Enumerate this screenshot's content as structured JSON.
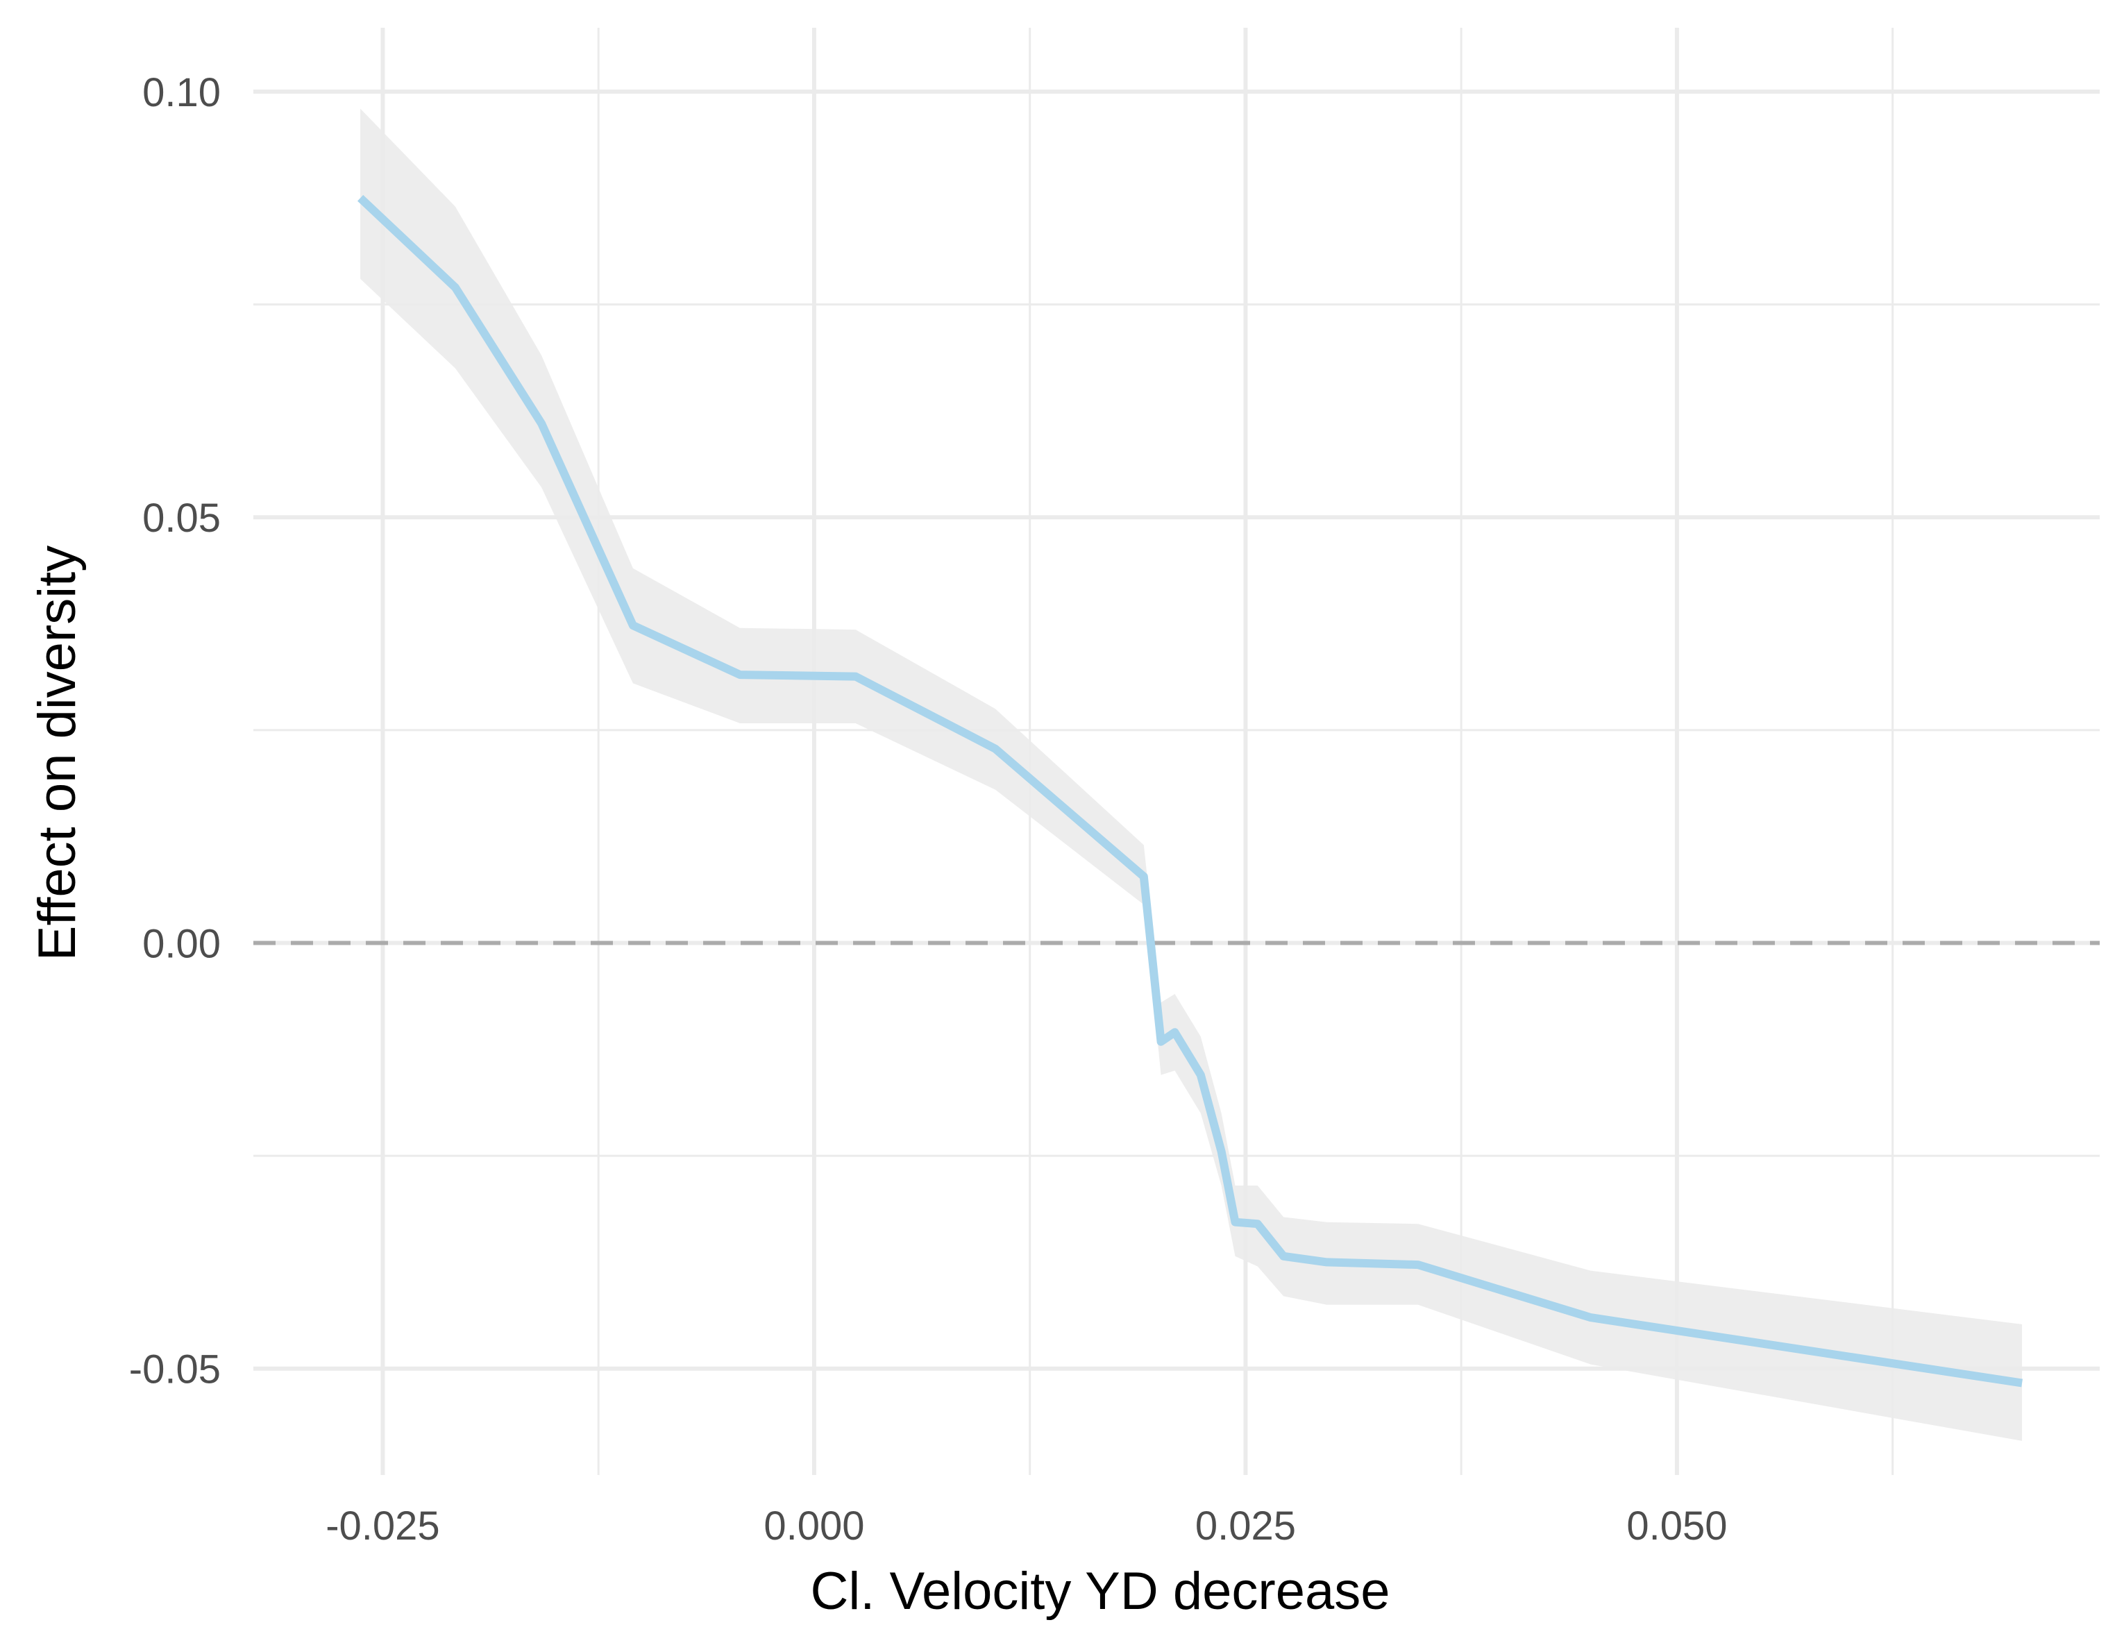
{
  "chart_data": {
    "type": "line",
    "title": "",
    "xlabel": "Cl. Velocity YD decrease",
    "ylabel": "Effect on diversity",
    "xlim": [
      -0.0325,
      0.0745
    ],
    "ylim": [
      -0.0625,
      0.1075
    ],
    "x_ticks": [
      -0.025,
      0.0,
      0.025,
      0.05
    ],
    "x_tick_labels": [
      "-0.025",
      "0.000",
      "0.025",
      "0.050"
    ],
    "x_minor_ticks": [
      -0.0125,
      0.0125,
      0.0375,
      0.0625
    ],
    "y_ticks": [
      0.1,
      0.05,
      0.0,
      -0.05
    ],
    "y_tick_labels": [
      "0.10",
      "0.05",
      "0.00",
      "-0.05"
    ],
    "y_minor_ticks": [
      0.075,
      0.025,
      -0.025
    ],
    "grid": true,
    "reference_line": {
      "y": 0.0,
      "style": "dashed",
      "color": "#ababab"
    },
    "colors": {
      "line": "#a8d4ec",
      "ribbon": "#ebebeb",
      "grid": "#ebebeb"
    },
    "series": [
      {
        "x": [
          -0.0263,
          -0.0208,
          -0.0158,
          -0.0105,
          -0.0043,
          0.0024,
          0.0105,
          0.0191,
          0.0201,
          0.0209,
          0.0224,
          0.0236,
          0.0244,
          0.0257,
          0.0272,
          0.0297,
          0.035,
          0.045,
          0.07
        ],
        "y": [
          0.0875,
          0.077,
          0.061,
          0.0373,
          0.0315,
          0.0313,
          0.0228,
          0.0078,
          -0.0116,
          -0.0105,
          -0.0155,
          -0.0245,
          -0.0328,
          -0.033,
          -0.0368,
          -0.0375,
          -0.0378,
          -0.044,
          -0.0517
        ],
        "lower": [
          0.078,
          0.0675,
          0.0535,
          0.0305,
          0.0258,
          0.0258,
          0.018,
          0.0045,
          -0.0155,
          -0.015,
          -0.02,
          -0.0285,
          -0.0368,
          -0.038,
          -0.0415,
          -0.0425,
          -0.0425,
          -0.0495,
          -0.0585
        ],
        "upper": [
          0.098,
          0.0865,
          0.069,
          0.044,
          0.037,
          0.0368,
          0.0275,
          0.0115,
          -0.007,
          -0.006,
          -0.011,
          -0.02,
          -0.0285,
          -0.0285,
          -0.0322,
          -0.0328,
          -0.033,
          -0.0385,
          -0.0448
        ]
      }
    ]
  }
}
